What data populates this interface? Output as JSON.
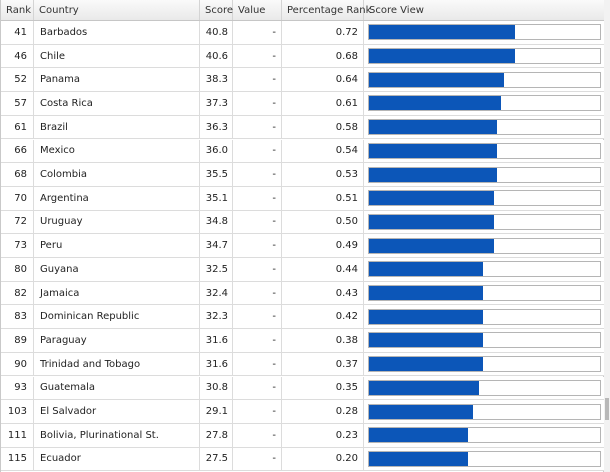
{
  "headers": {
    "rank": "Rank",
    "country": "Country",
    "score": "Score",
    "value": "Value",
    "percentage_rank": "Percentage Rank",
    "score_view": "Score View"
  },
  "bar_color": "#0c56b8",
  "rows": [
    {
      "rank": "41",
      "country": "Barbados",
      "score": "40.8",
      "value": "-",
      "pct": "0.72",
      "bar": 0.63
    },
    {
      "rank": "46",
      "country": "Chile",
      "score": "40.6",
      "value": "-",
      "pct": "0.68",
      "bar": 0.63
    },
    {
      "rank": "52",
      "country": "Panama",
      "score": "38.3",
      "value": "-",
      "pct": "0.64",
      "bar": 0.585
    },
    {
      "rank": "57",
      "country": "Costa Rica",
      "score": "37.3",
      "value": "-",
      "pct": "0.61",
      "bar": 0.57
    },
    {
      "rank": "61",
      "country": "Brazil",
      "score": "36.3",
      "value": "-",
      "pct": "0.58",
      "bar": 0.555
    },
    {
      "rank": "66",
      "country": "Mexico",
      "score": "36.0",
      "value": "-",
      "pct": "0.54",
      "bar": 0.555
    },
    {
      "rank": "68",
      "country": "Colombia",
      "score": "35.5",
      "value": "-",
      "pct": "0.53",
      "bar": 0.555
    },
    {
      "rank": "70",
      "country": "Argentina",
      "score": "35.1",
      "value": "-",
      "pct": "0.51",
      "bar": 0.54
    },
    {
      "rank": "72",
      "country": "Uruguay",
      "score": "34.8",
      "value": "-",
      "pct": "0.50",
      "bar": 0.54
    },
    {
      "rank": "73",
      "country": "Peru",
      "score": "34.7",
      "value": "-",
      "pct": "0.49",
      "bar": 0.54
    },
    {
      "rank": "80",
      "country": "Guyana",
      "score": "32.5",
      "value": "-",
      "pct": "0.44",
      "bar": 0.495
    },
    {
      "rank": "82",
      "country": "Jamaica",
      "score": "32.4",
      "value": "-",
      "pct": "0.43",
      "bar": 0.495
    },
    {
      "rank": "83",
      "country": "Dominican Republic",
      "score": "32.3",
      "value": "-",
      "pct": "0.42",
      "bar": 0.495
    },
    {
      "rank": "89",
      "country": "Paraguay",
      "score": "31.6",
      "value": "-",
      "pct": "0.38",
      "bar": 0.495
    },
    {
      "rank": "90",
      "country": "Trinidad and Tobago",
      "score": "31.6",
      "value": "-",
      "pct": "0.37",
      "bar": 0.495
    },
    {
      "rank": "93",
      "country": "Guatemala",
      "score": "30.8",
      "value": "-",
      "pct": "0.35",
      "bar": 0.475
    },
    {
      "rank": "103",
      "country": "El Salvador",
      "score": "29.1",
      "value": "-",
      "pct": "0.28",
      "bar": 0.45
    },
    {
      "rank": "111",
      "country": "Bolivia, Plurinational St.",
      "score": "27.8",
      "value": "-",
      "pct": "0.23",
      "bar": 0.43
    },
    {
      "rank": "115",
      "country": "Ecuador",
      "score": "27.5",
      "value": "-",
      "pct": "0.20",
      "bar": 0.43
    }
  ]
}
